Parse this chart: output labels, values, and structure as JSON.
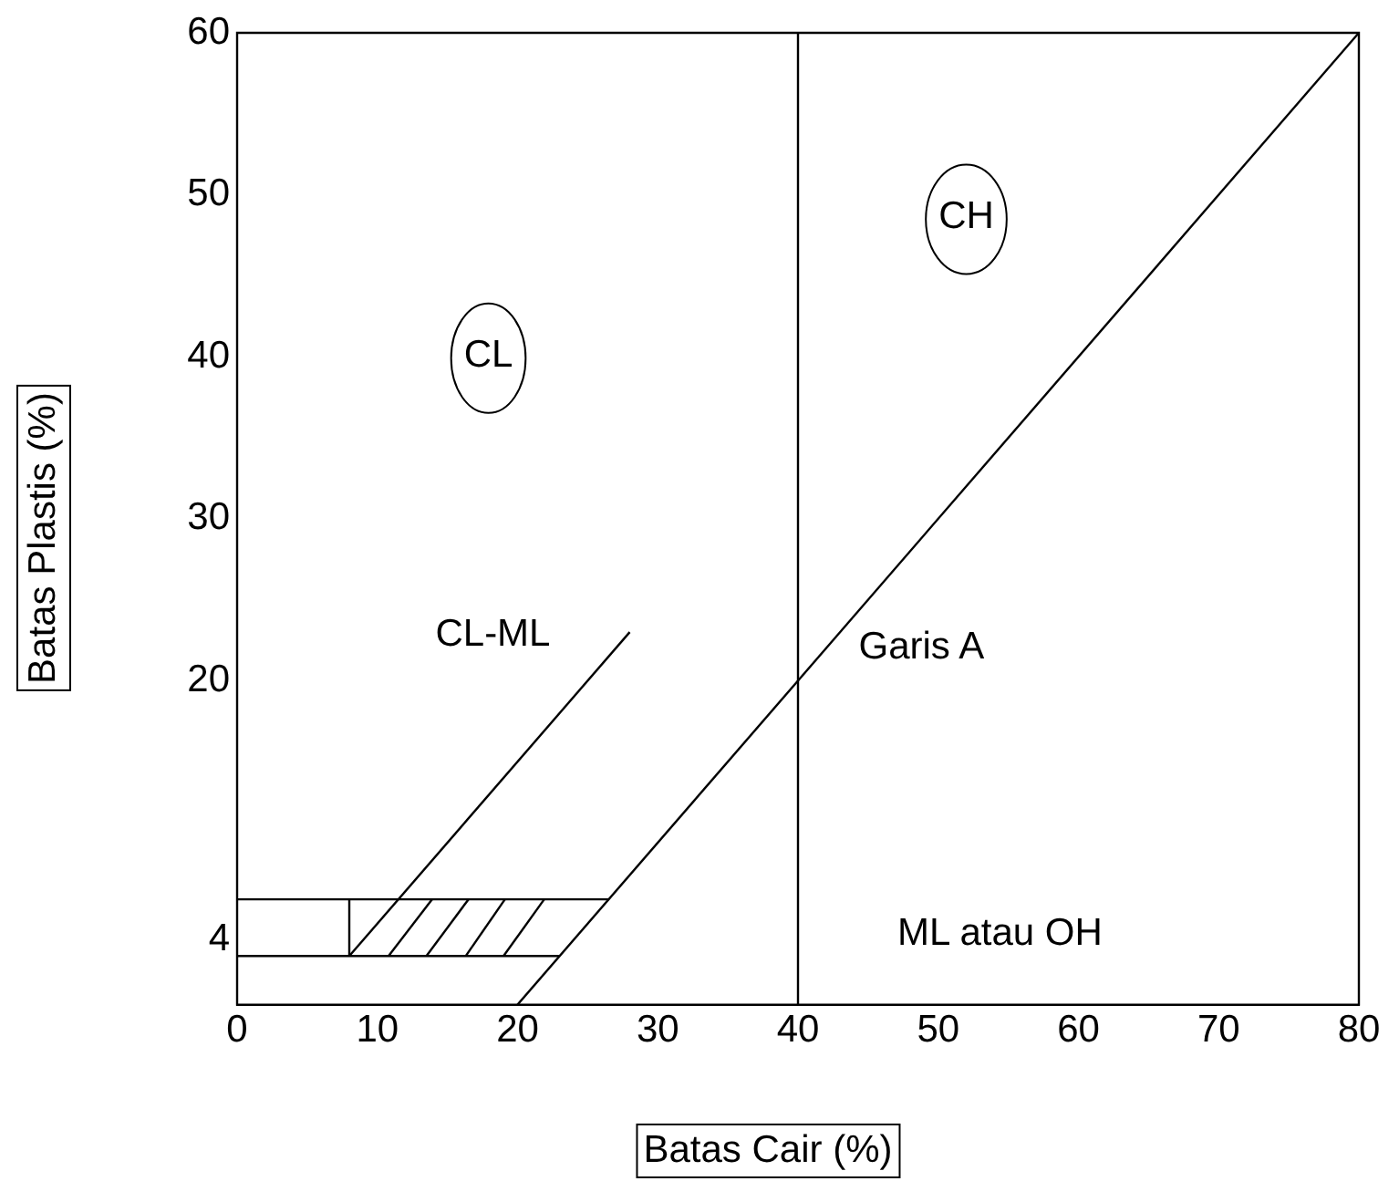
{
  "chart_data": {
    "type": "line",
    "xlabel": "Batas Cair (%)",
    "ylabel": "Batas Plastis (%)",
    "xlim": [
      0,
      80
    ],
    "ylim": [
      0,
      60
    ],
    "xticks": [
      0,
      10,
      20,
      30,
      40,
      50,
      60,
      70,
      80
    ],
    "yticks": [
      4,
      20,
      30,
      40,
      50,
      60
    ],
    "marker": "none",
    "grid": false,
    "legend": false,
    "series": [
      {
        "color": "#000000",
        "x": [
          20,
          80
        ],
        "values": [
          0,
          60
        ]
      },
      {
        "color": "#000000",
        "x": [
          8,
          28
        ],
        "values": [
          3,
          23
        ]
      },
      {
        "color": "#000000",
        "x": [
          0,
          26.5
        ],
        "values": [
          6.5,
          6.5
        ]
      },
      {
        "color": "#000000",
        "x": [
          0,
          23
        ],
        "values": [
          3,
          3
        ]
      },
      {
        "color": "#000000",
        "x": [
          8,
          8
        ],
        "values": [
          3,
          6.5
        ]
      },
      {
        "color": "#000000",
        "x": [
          10.8,
          13.9
        ],
        "values": [
          3,
          6.5
        ]
      },
      {
        "color": "#000000",
        "x": [
          13.5,
          16.5
        ],
        "values": [
          3,
          6.5
        ]
      },
      {
        "color": "#000000",
        "x": [
          16.3,
          19.1
        ],
        "values": [
          3,
          6.5
        ]
      },
      {
        "color": "#000000",
        "x": [
          19.0,
          21.9
        ],
        "values": [
          3,
          6.5
        ]
      }
    ],
    "ref_lines": [
      {
        "axis": "x",
        "value": 40,
        "color": "#000000"
      }
    ],
    "annotations": [
      "CL",
      "CH",
      "CL-ML",
      "Garis A",
      "ML atau OH"
    ]
  }
}
